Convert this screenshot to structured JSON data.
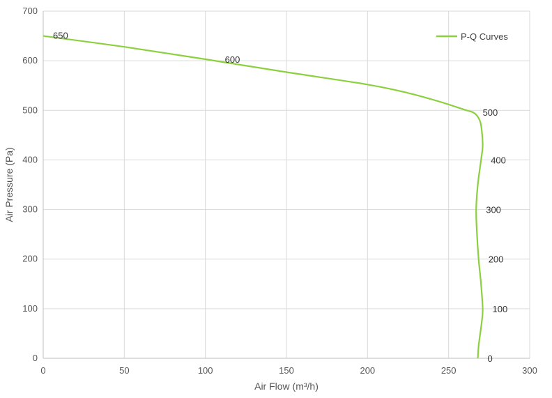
{
  "chart_data": {
    "type": "line",
    "title": "",
    "xlabel": "Air Flow  (m³/h)",
    "ylabel": "Air Pressure  (Pa)",
    "xlim": [
      0,
      300
    ],
    "ylim": [
      0,
      700
    ],
    "xticks": [
      "0",
      "50",
      "100",
      "150",
      "200",
      "250",
      "300"
    ],
    "yticks": [
      "0",
      "100",
      "200",
      "300",
      "400",
      "500",
      "600",
      "700"
    ],
    "grid": true,
    "legend_position": "top-right",
    "series": [
      {
        "name": "P-Q Curves",
        "color": "#8ccf3f",
        "x": [
          0,
          50,
          100,
          150,
          200,
          225,
          245,
          260,
          265,
          268,
          270,
          271,
          270,
          268,
          267,
          267.5,
          268.5,
          270,
          271,
          270.5,
          269.5,
          268.5,
          268
        ],
        "y": [
          650,
          628,
          603,
          577,
          552,
          535,
          517,
          501,
          496,
          487,
          470,
          430,
          400,
          350,
          300,
          250,
          200,
          150,
          100,
          75,
          50,
          25,
          0
        ]
      }
    ],
    "data_labels": [
      {
        "text": "650",
        "x": 0,
        "y": 650
      },
      {
        "text": "600",
        "x": 100,
        "y": 603
      },
      {
        "text": "500",
        "x": 265,
        "y": 496
      },
      {
        "text": "400",
        "x": 270,
        "y": 400
      },
      {
        "text": "300",
        "x": 267,
        "y": 300
      },
      {
        "text": "200",
        "x": 268.5,
        "y": 200
      },
      {
        "text": "100",
        "x": 271,
        "y": 100
      },
      {
        "text": "0",
        "x": 268,
        "y": 0
      }
    ]
  }
}
